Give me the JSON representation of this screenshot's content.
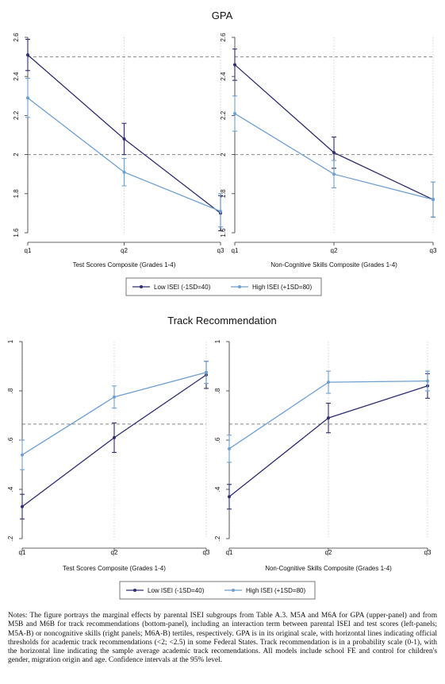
{
  "colors": {
    "low": "#2e2e6e",
    "high": "#6f9fcf",
    "threshold": "#888888",
    "grid": "#c8c8c8"
  },
  "notes": "Notes: The figure portrays the marginal effects by parental ISEI subgroups from Table A.3. M5A and M6A for GPA (upper-panel) and from M5B and M6B for track recommendations (bottom-panel), including an interaction term between parental ISEI and test scores (left-panels; M5A-B) or noncognitive skills (right panels; M6A-B) tertiles, respectively. GPA is in its original scale, with horizontal lines indicating official thresholds for academic track recommendations (<2; <2.5) in some Federal States. Track recommendation is in a probability scale (0-1), with the horizontal line indicating the sample average academic track recomendations. All models include school FE and control for children's gender, migration origin and age. Confidence intervals at the 95% level.",
  "chart_data": [
    {
      "type": "line",
      "title": "GPA",
      "ylim": [
        1.6,
        2.6
      ],
      "yticks": [
        1.6,
        1.8,
        2,
        2.2,
        2.4,
        2.6
      ],
      "ytick_labels": [
        "1.6",
        "1.8",
        "2",
        "2.2",
        "2.4",
        "2.6"
      ],
      "hlines": [
        2.0,
        2.5
      ],
      "legend": {
        "placement": "bottom",
        "entries": [
          "Low ISEI (-1SD=40)",
          "High ISEI (+1SD=80)"
        ]
      },
      "panels": [
        {
          "xlabel": "Test Scores Composite (Grades 1-4)",
          "categories": [
            "q1",
            "q2",
            "q3"
          ],
          "series": [
            {
              "name": "Low ISEI (-1SD=40)",
              "values": [
                2.51,
                2.08,
                1.7
              ],
              "ci_low": [
                2.43,
                2.0,
                1.61
              ],
              "ci_high": [
                2.59,
                2.16,
                1.79
              ]
            },
            {
              "name": "High ISEI (+1SD=80)",
              "values": [
                2.29,
                1.91,
                1.71
              ],
              "ci_low": [
                2.19,
                1.84,
                1.63
              ],
              "ci_high": [
                2.39,
                1.98,
                1.8
              ]
            }
          ]
        },
        {
          "xlabel": "Non-Cognitive Skills Composite (Grades 1-4)",
          "categories": [
            "q1",
            "q2",
            "q3"
          ],
          "series": [
            {
              "name": "Low ISEI (-1SD=40)",
              "values": [
                2.46,
                2.01,
                1.77
              ],
              "ci_low": [
                2.38,
                1.93,
                1.68
              ],
              "ci_high": [
                2.54,
                2.09,
                1.86
              ]
            },
            {
              "name": "High ISEI (+1SD=80)",
              "values": [
                2.21,
                1.9,
                1.77
              ],
              "ci_low": [
                2.12,
                1.83,
                1.68
              ],
              "ci_high": [
                2.3,
                1.97,
                1.86
              ]
            }
          ]
        }
      ]
    },
    {
      "type": "line",
      "title": "Track Recommendation",
      "ylim": [
        0.2,
        1.0
      ],
      "yticks": [
        0.2,
        0.4,
        0.6,
        0.8,
        1.0
      ],
      "ytick_labels": [
        ".2",
        ".4",
        ".6",
        ".8",
        "1"
      ],
      "hlines": [
        0.665
      ],
      "legend": {
        "placement": "bottom",
        "entries": [
          "Low ISEI (-1SD=40)",
          "High ISEI (+1SD=80)"
        ]
      },
      "panels": [
        {
          "xlabel": "Test Scores Composite (Grades 1-4)",
          "categories": [
            "q1",
            "q2",
            "q3"
          ],
          "series": [
            {
              "name": "Low ISEI (-1SD=40)",
              "values": [
                0.33,
                0.61,
                0.865
              ],
              "ci_low": [
                0.28,
                0.55,
                0.81
              ],
              "ci_high": [
                0.38,
                0.67,
                0.92
              ]
            },
            {
              "name": "High ISEI (+1SD=80)",
              "values": [
                0.54,
                0.775,
                0.875
              ],
              "ci_low": [
                0.48,
                0.73,
                0.83
              ],
              "ci_high": [
                0.6,
                0.82,
                0.92
              ]
            }
          ]
        },
        {
          "xlabel": "Non-Cognitive Skills Composite (Grades 1-4)",
          "categories": [
            "q1",
            "q2",
            "q3"
          ],
          "series": [
            {
              "name": "Low ISEI (-1SD=40)",
              "values": [
                0.37,
                0.69,
                0.82
              ],
              "ci_low": [
                0.32,
                0.63,
                0.77
              ],
              "ci_high": [
                0.42,
                0.75,
                0.87
              ]
            },
            {
              "name": "High ISEI (+1SD=80)",
              "values": [
                0.565,
                0.835,
                0.84
              ],
              "ci_low": [
                0.51,
                0.79,
                0.8
              ],
              "ci_high": [
                0.62,
                0.88,
                0.88
              ]
            }
          ]
        }
      ]
    }
  ]
}
